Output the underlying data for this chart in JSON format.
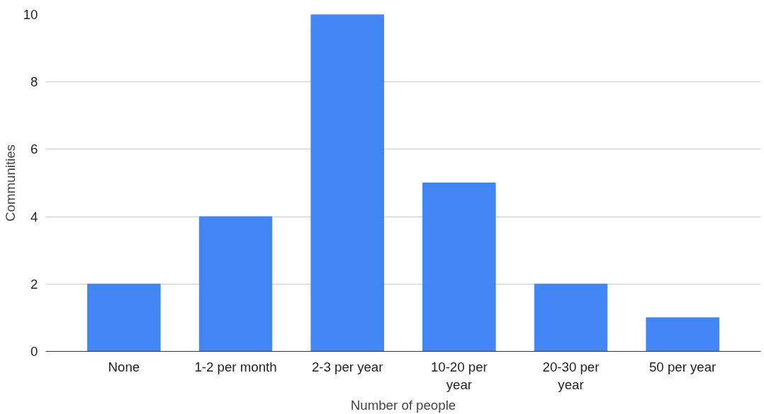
{
  "chart_data": {
    "type": "bar",
    "xlabel": "Number of people",
    "ylabel": "Communities",
    "categories": [
      "None",
      "1-2 per month",
      "2-3 per year",
      "10-20 per year",
      "20-30 per year",
      "50 per year"
    ],
    "values": [
      2,
      4,
      10,
      5,
      2,
      1
    ],
    "color": "#4285f4",
    "ylim": [
      0,
      10
    ],
    "yticks": [
      0,
      2,
      4,
      6,
      8,
      10
    ],
    "grid": "y"
  }
}
